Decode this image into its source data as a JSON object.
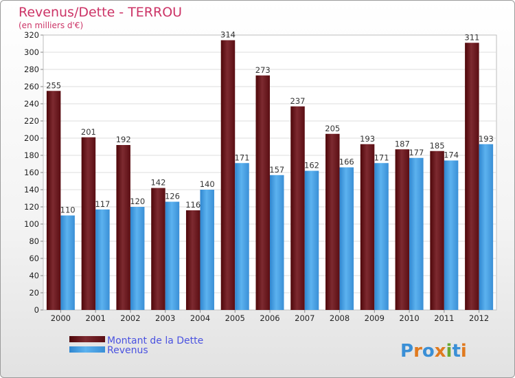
{
  "chart_data": {
    "type": "bar",
    "title": "Revenus/Dette - TERROU",
    "subtitle": "(en milliers d'€)",
    "categories": [
      "2000",
      "2001",
      "2002",
      "2003",
      "2004",
      "2005",
      "2006",
      "2007",
      "2008",
      "2009",
      "2010",
      "2011",
      "2012"
    ],
    "series": [
      {
        "name": "Montant de la Dette",
        "color": "#7a1a20",
        "values": [
          255,
          201,
          192,
          142,
          116,
          314,
          273,
          237,
          205,
          193,
          187,
          185,
          311
        ]
      },
      {
        "name": "Revenus",
        "color": "#3a9be3",
        "values": [
          110,
          117,
          120,
          126,
          140,
          171,
          157,
          162,
          166,
          171,
          177,
          174,
          193
        ]
      }
    ],
    "ylim": [
      0,
      320
    ],
    "ytick_step": 20,
    "grid": true,
    "legend": "bottom-left"
  },
  "logo": {
    "text": "Proxiti"
  }
}
